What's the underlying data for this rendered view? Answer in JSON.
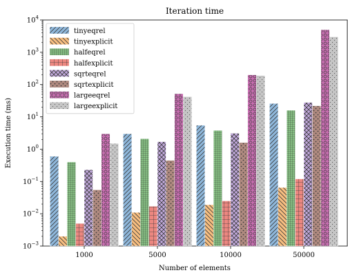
{
  "chart_data": {
    "type": "bar",
    "title": "Iteration time",
    "xlabel": "Number of elements",
    "ylabel": "Execution time (ms)",
    "yscale": "log",
    "ylim": [
      0.001,
      10000
    ],
    "grid": false,
    "legend_placement": "top-left",
    "categories": [
      "1000",
      "5000",
      "10000",
      "50000"
    ],
    "yticks": [
      {
        "value": 0.001,
        "base": "10",
        "exp": "−3"
      },
      {
        "value": 0.01,
        "base": "10",
        "exp": "−2"
      },
      {
        "value": 0.1,
        "base": "10",
        "exp": "−1"
      },
      {
        "value": 1,
        "base": "10",
        "exp": "0"
      },
      {
        "value": 10,
        "base": "10",
        "exp": "1"
      },
      {
        "value": 100,
        "base": "10",
        "exp": "2"
      },
      {
        "value": 1000,
        "base": "10",
        "exp": "3"
      },
      {
        "value": 10000,
        "base": "10",
        "exp": "4"
      }
    ],
    "series": [
      {
        "name": "tinyeqrel",
        "color": "#8fb8dc",
        "hatch": "diag-right",
        "values": [
          0.6,
          3.0,
          5.5,
          26
        ]
      },
      {
        "name": "tinyexplicit",
        "color": "#f7be80",
        "hatch": "diag-left",
        "values": [
          0.002,
          0.011,
          0.019,
          0.065
        ]
      },
      {
        "name": "halfeqrel",
        "color": "#86c183",
        "hatch": "grid-fine",
        "values": [
          0.4,
          2.1,
          3.8,
          16
        ]
      },
      {
        "name": "halfexplicit",
        "color": "#ec8780",
        "hatch": "grid",
        "values": [
          0.005,
          0.017,
          0.025,
          0.12
        ]
      },
      {
        "name": "sqrteqrel",
        "color": "#c2a9dd",
        "hatch": "cross",
        "values": [
          0.23,
          1.7,
          3.1,
          28
        ]
      },
      {
        "name": "sqrtexplicit",
        "color": "#b08a80",
        "hatch": "dots",
        "values": [
          0.055,
          0.45,
          1.6,
          22
        ]
      },
      {
        "name": "largeeqrel",
        "color": "#c76db0",
        "hatch": "circles",
        "values": [
          3.0,
          52,
          200,
          5000
        ]
      },
      {
        "name": "largeexplicit",
        "color": "#c5c5c5",
        "hatch": "dots-fine",
        "values": [
          1.5,
          42,
          190,
          3000
        ]
      }
    ]
  }
}
